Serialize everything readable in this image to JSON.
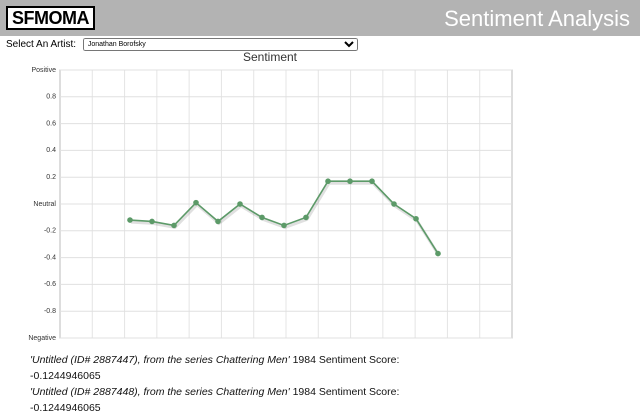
{
  "header": {
    "logo": "SFMOMA",
    "title": "Sentiment Analysis"
  },
  "selector": {
    "label": "Select An Artist:",
    "value": "Jonathan Borofsky"
  },
  "chart_data": {
    "type": "line",
    "title": "Sentiment",
    "categories": [
      null,
      null,
      null,
      null,
      null,
      null,
      null,
      null,
      null,
      null,
      null,
      null,
      null,
      null,
      null
    ],
    "series": [
      {
        "color": "#5c9a68",
        "values": [
          -0.12,
          -0.13,
          -0.16,
          0.01,
          -0.13,
          0,
          -0.1,
          -0.16,
          -0.1,
          0.17,
          0.17,
          0.17,
          0,
          -0.11,
          -0.37
        ]
      }
    ],
    "ylim": [
      -1,
      1
    ],
    "yticks": [
      {
        "value": -1,
        "label": "Negative"
      },
      -0.8,
      -0.6,
      -0.4,
      -0.2,
      {
        "value": 0,
        "label": "Neutral"
      },
      0.2,
      0.4,
      0.6,
      0.8,
      {
        "value": 1,
        "label": "Positive"
      }
    ],
    "grid": true
  },
  "entries": [
    {
      "title": "'Untitled (ID# 2887447), from the series Chattering Men'",
      "year": "1984",
      "label": "Sentiment Score:",
      "score": -0.1244946065
    },
    {
      "title": "'Untitled (ID# 2887448), from the series Chattering Men'",
      "year": "1984",
      "label": "Sentiment Score:",
      "score": -0.1244946065
    }
  ]
}
